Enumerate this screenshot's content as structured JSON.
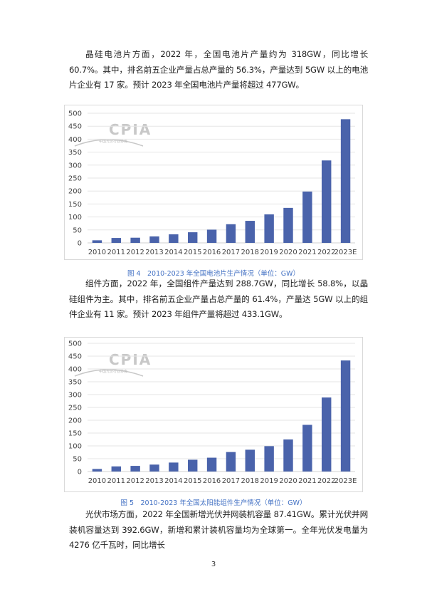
{
  "paragraphs": [
    "晶硅电池片方面，2022 年，全国电池片产量约为 318GW，同比增长 60.7%。其中，排名前五企业产量占总产量的 56.3%，产量达到 5GW 以上的电池片企业有 17 家。预计 2023 年全国电池片产量将超过 477GW。",
    "组件方面，2022 年，全国组件产量达到 288.7GW，同比增长 58.8%，以晶硅组件为主。其中，排名前五企业产量占总产量的 61.4%，产量达 5GW 以上的组件企业有 11 家。预计 2023 年组件产量将超过 433.1GW。",
    "光伏市场方面，2022 年全国新增光伏并网装机容量 87.41GW。累计光伏并网装机容量达到 392.6GW，新增和累计装机容量均为全球第一。全年光伏发电量为 4276 亿千瓦时，同比增长"
  ],
  "watermark": {
    "text": "CPIA",
    "subtext": "中国光伏行业协会"
  },
  "page_number": "3",
  "colors": {
    "bar": "#4a63ab",
    "caption": "#4472c4"
  },
  "chart_data": [
    {
      "type": "bar",
      "title": "图 4　2010-2023 年全国电池片生产情况（单位：GW）",
      "categories": [
        "2010",
        "2011",
        "2012",
        "2013",
        "2014",
        "2015",
        "2016",
        "2017",
        "2018",
        "2019",
        "2020",
        "2021",
        "2022",
        "2023E"
      ],
      "values": [
        10,
        19,
        20,
        25,
        33,
        41,
        51,
        72,
        85,
        110,
        135,
        198,
        318,
        477
      ],
      "yticks": [
        0,
        50,
        100,
        150,
        200,
        250,
        300,
        350,
        400,
        450,
        500
      ],
      "ylim": [
        0,
        500
      ],
      "grid": true
    },
    {
      "type": "bar",
      "title": "图 5　2010-2023 年全国太阳能组件生产情况（单位：GW）",
      "categories": [
        "2010",
        "2011",
        "2012",
        "2013",
        "2014",
        "2015",
        "2016",
        "2017",
        "2018",
        "2019",
        "2020",
        "2021",
        "2022",
        "2023E"
      ],
      "values": [
        10,
        20,
        22,
        27,
        35,
        46,
        54,
        76,
        85,
        99,
        125,
        182,
        288.7,
        433.1
      ],
      "yticks": [
        0,
        50,
        100,
        150,
        200,
        250,
        300,
        350,
        400,
        450,
        500
      ],
      "ylim": [
        0,
        500
      ],
      "grid": true
    }
  ]
}
